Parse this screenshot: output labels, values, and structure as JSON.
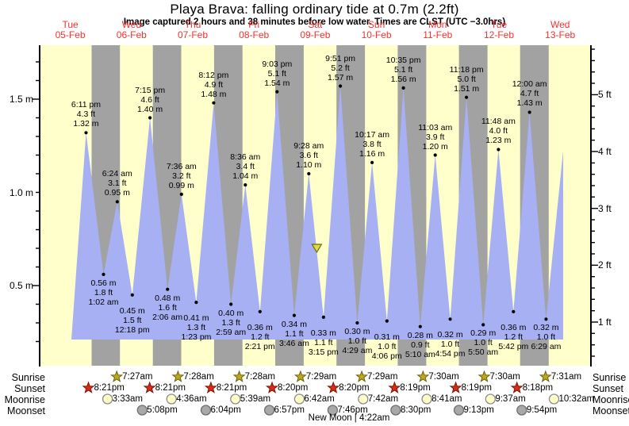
{
  "title": "Playa Brava: falling  ordinary tide at 0.7m (2.2ft)",
  "subtitle": "Image captured 2 hours and 38 minutes before low water. Times are CLST (UTC −3.0hrs)",
  "colors": {
    "day_band": "#ffffcc",
    "night_band": "#a2a2a2",
    "tide_area": "#a6b0f2",
    "day_label_red": "#f53131",
    "sunrise_star": "#bfa81c",
    "sunset_star": "#d92b17",
    "moonrise_disc": "#ffffc8",
    "moonset_disc": "#a8a8a8",
    "current_marker": "#e0dc3c"
  },
  "chart_data": {
    "type": "area",
    "title": "Playa Brava: falling  ordinary tide at 0.7m (2.2ft)",
    "x_axis_days": [
      {
        "dow": "Tue",
        "date": "05-Feb"
      },
      {
        "dow": "Wed",
        "date": "06-Feb"
      },
      {
        "dow": "Thu",
        "date": "07-Feb"
      },
      {
        "dow": "Fri",
        "date": "08-Feb"
      },
      {
        "dow": "Sat",
        "date": "09-Feb"
      },
      {
        "dow": "Sun",
        "date": "10-Feb"
      },
      {
        "dow": "Mon",
        "date": "11-Feb"
      },
      {
        "dow": "Tue",
        "date": "12-Feb"
      },
      {
        "dow": "Wed",
        "date": "13-Feb"
      }
    ],
    "y_axis_left": {
      "unit": "m",
      "ticks": [
        {
          "label": "0.5 m",
          "value": 0.5
        },
        {
          "label": "1.0 m",
          "value": 1.0
        },
        {
          "label": "1.5 m",
          "value": 1.5
        }
      ]
    },
    "y_axis_right": {
      "unit": "ft",
      "ticks": [
        {
          "label": "1 ft",
          "value": 1
        },
        {
          "label": "2 ft",
          "value": 2
        },
        {
          "label": "3 ft",
          "value": 3
        },
        {
          "label": "4 ft",
          "value": 4
        },
        {
          "label": "5 ft",
          "value": 5
        }
      ]
    },
    "current": {
      "state": "falling",
      "height_m": 0.7,
      "height_ft": 2.2,
      "marker_t": 108.62,
      "marker_h": 0.7
    },
    "tide_events": [
      {
        "kind": "high",
        "time": "6:11 pm",
        "ft": "4.3 ft",
        "m": "1.32 m",
        "t": 18.18,
        "h": 1.32
      },
      {
        "kind": "low",
        "time": "1:02 am",
        "ft": "1.8 ft",
        "m": "0.56 m",
        "t": 25.03,
        "h": 0.56
      },
      {
        "kind": "high",
        "time": "6:24 am",
        "ft": "3.1 ft",
        "m": "0.95 m",
        "t": 30.4,
        "h": 0.95
      },
      {
        "kind": "low",
        "time": "12:18 pm",
        "ft": "1.5 ft",
        "m": "0.45 m",
        "t": 36.3,
        "h": 0.45
      },
      {
        "kind": "high",
        "time": "7:15 pm",
        "ft": "4.6 ft",
        "m": "1.40 m",
        "t": 43.25,
        "h": 1.4
      },
      {
        "kind": "low",
        "time": "2:06 am",
        "ft": "1.6 ft",
        "m": "0.48 m",
        "t": 50.1,
        "h": 0.48
      },
      {
        "kind": "high",
        "time": "7:36 am",
        "ft": "3.2 ft",
        "m": "0.99 m",
        "t": 55.6,
        "h": 0.99
      },
      {
        "kind": "low",
        "time": "1:23 pm",
        "ft": "1.3 ft",
        "m": "0.41 m",
        "t": 61.38,
        "h": 0.41
      },
      {
        "kind": "high",
        "time": "8:12 pm",
        "ft": "4.9 ft",
        "m": "1.48 m",
        "t": 68.2,
        "h": 1.48
      },
      {
        "kind": "low",
        "time": "2:59 am",
        "ft": "1.3 ft",
        "m": "0.40 m",
        "t": 74.98,
        "h": 0.4
      },
      {
        "kind": "high",
        "time": "8:36 am",
        "ft": "3.4 ft",
        "m": "1.04 m",
        "t": 80.6,
        "h": 1.04
      },
      {
        "kind": "low",
        "time": "2:21 pm",
        "ft": "1.2 ft",
        "m": "0.36 m",
        "t": 86.35,
        "h": 0.36
      },
      {
        "kind": "high",
        "time": "9:03 pm",
        "ft": "5.1 ft",
        "m": "1.54 m",
        "t": 93.05,
        "h": 1.54
      },
      {
        "kind": "low",
        "time": "3:46 am",
        "ft": "1.1 ft",
        "m": "0.34 m",
        "t": 99.77,
        "h": 0.34
      },
      {
        "kind": "high",
        "time": "9:28 am",
        "ft": "3.6 ft",
        "m": "1.10 m",
        "t": 105.47,
        "h": 1.1
      },
      {
        "kind": "low",
        "time": "3:15 pm",
        "ft": "1.1 ft",
        "m": "0.33 m",
        "t": 111.25,
        "h": 0.33
      },
      {
        "kind": "high",
        "time": "9:51 pm",
        "ft": "5.2 ft",
        "m": "1.57 m",
        "t": 117.85,
        "h": 1.57
      },
      {
        "kind": "low",
        "time": "4:29 am",
        "ft": "1.0 ft",
        "m": "0.30 m",
        "t": 124.48,
        "h": 0.3
      },
      {
        "kind": "high",
        "time": "10:17 am",
        "ft": "3.8 ft",
        "m": "1.16 m",
        "t": 130.28,
        "h": 1.16
      },
      {
        "kind": "low",
        "time": "4:06 pm",
        "ft": "1.0 ft",
        "m": "0.31 m",
        "t": 136.1,
        "h": 0.31
      },
      {
        "kind": "high",
        "time": "10:35 pm",
        "ft": "5.1 ft",
        "m": "1.56 m",
        "t": 142.58,
        "h": 1.56
      },
      {
        "kind": "low",
        "time": "5:10 am",
        "ft": "0.9 ft",
        "m": "0.28 m",
        "t": 149.17,
        "h": 0.28
      },
      {
        "kind": "high",
        "time": "11:03 am",
        "ft": "3.9 ft",
        "m": "1.20 m",
        "t": 155.05,
        "h": 1.2
      },
      {
        "kind": "low",
        "time": "4:54 pm",
        "ft": "1.0 ft",
        "m": "0.32 m",
        "t": 160.9,
        "h": 0.32
      },
      {
        "kind": "high",
        "time": "11:18 pm",
        "ft": "5.0 ft",
        "m": "1.51 m",
        "t": 167.3,
        "h": 1.51
      },
      {
        "kind": "low",
        "time": "5:50 am",
        "ft": "1.0 ft",
        "m": "0.29 m",
        "t": 173.83,
        "h": 0.29
      },
      {
        "kind": "high",
        "time": "11:48 am",
        "ft": "4.0 ft",
        "m": "1.23 m",
        "t": 179.8,
        "h": 1.23
      },
      {
        "kind": "low",
        "time": "5:42 pm",
        "ft": "1.2 ft",
        "m": "0.36 m",
        "t": 185.7,
        "h": 0.36
      },
      {
        "kind": "high",
        "time": "12:00 am",
        "ft": "4.7 ft",
        "m": "1.43 m",
        "t": 192.0,
        "h": 1.43
      },
      {
        "kind": "low",
        "time": "6:29 am",
        "ft": "1.0 ft",
        "m": "0.32 m",
        "t": 198.48,
        "h": 0.32
      }
    ]
  },
  "astro": {
    "row_labels": [
      "Sunrise",
      "Sunset",
      "Moonrise",
      "Moonset"
    ],
    "sunrise": [
      {
        "time": "7:27am",
        "t": 31.45
      },
      {
        "time": "7:28am",
        "t": 55.47
      },
      {
        "time": "7:28am",
        "t": 79.47
      },
      {
        "time": "7:29am",
        "t": 103.48
      },
      {
        "time": "7:29am",
        "t": 127.48
      },
      {
        "time": "7:30am",
        "t": 151.5
      },
      {
        "time": "7:30am",
        "t": 175.5
      },
      {
        "time": "7:31am",
        "t": 199.52
      }
    ],
    "sunset": [
      {
        "time": "8:21pm",
        "t": 20.35
      },
      {
        "time": "8:21pm",
        "t": 44.35
      },
      {
        "time": "8:21pm",
        "t": 68.35
      },
      {
        "time": "8:20pm",
        "t": 92.33
      },
      {
        "time": "8:20pm",
        "t": 116.33
      },
      {
        "time": "8:19pm",
        "t": 140.32
      },
      {
        "time": "8:19pm",
        "t": 164.32
      },
      {
        "time": "8:18pm",
        "t": 188.3
      }
    ],
    "moonrise": [
      {
        "time": "3:33am",
        "t": 27.55
      },
      {
        "time": "4:36am",
        "t": 52.6
      },
      {
        "time": "5:39am",
        "t": 77.65
      },
      {
        "time": "6:42am",
        "t": 102.7
      },
      {
        "time": "7:42am",
        "t": 127.7
      },
      {
        "time": "8:41am",
        "t": 152.68
      },
      {
        "time": "9:37am",
        "t": 177.62
      },
      {
        "time": "10:32am",
        "t": 202.53
      }
    ],
    "moonset": [
      {
        "time": "5:08pm",
        "t": 41.13
      },
      {
        "time": "6:04pm",
        "t": 66.07
      },
      {
        "time": "6:57pm",
        "t": 90.95
      },
      {
        "time": "7:46pm",
        "t": 115.77
      },
      {
        "time": "8:30pm",
        "t": 140.5
      },
      {
        "time": "9:13pm",
        "t": 165.22
      },
      {
        "time": "9:54pm",
        "t": 189.9
      }
    ],
    "moon_phase": "New Moon | 4:22am"
  }
}
